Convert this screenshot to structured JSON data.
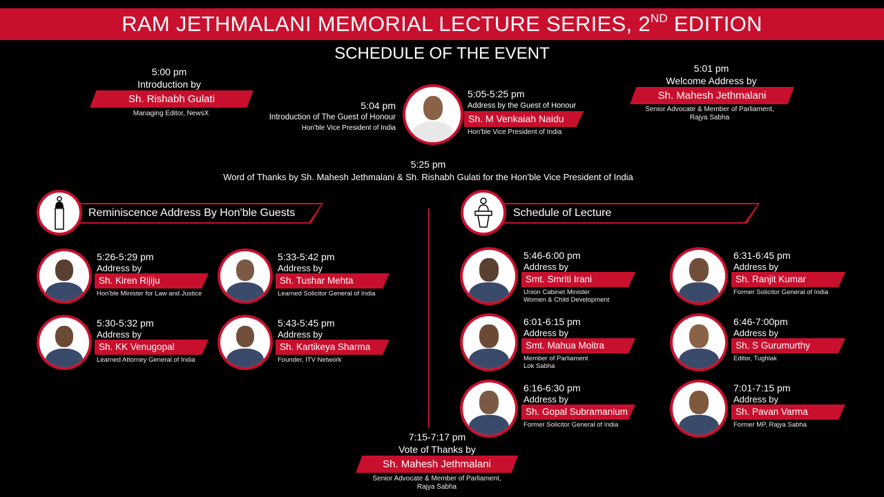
{
  "header": {
    "title": "RAM JETHMALANI MEMORIAL LECTURE SERIES, 2",
    "title_sup": "ND",
    "title_end": " EDITION",
    "subtitle": "SCHEDULE OF THE EVENT"
  },
  "colors": {
    "accent": "#c8102e",
    "background": "#000000"
  },
  "intro": {
    "time": "5:00 pm",
    "label": "Introduction by",
    "name": "Sh. Rishabh Gulati",
    "role": "Managing Editor, NewsX"
  },
  "guest_intro": {
    "time": "5:04 pm",
    "label": "Introduction of The Guest of Honour",
    "role": "Hon'ble Vice President of India"
  },
  "guest_address": {
    "time": "5:05-5:25 pm",
    "label": "Address by the Guest of Honour",
    "name": "Sh. M Venkaiah Naidu",
    "role": "Hon'ble Vice President of India"
  },
  "welcome": {
    "time": "5:01 pm",
    "label": "Welcome Address by",
    "name": "Sh. Mahesh Jethmalani",
    "role1": "Senior Advocate & Member of Parliament,",
    "role2": "Rajya Sabha"
  },
  "thanks": {
    "time": "5:25 pm",
    "label": "Word of Thanks by Sh. Mahesh Jethmalani & Sh. Rishabh Gulati for the Hon'ble Vice President of India"
  },
  "sections": {
    "reminiscence": {
      "title": "Reminiscence Address By Hon'ble Guests",
      "icon": "microphone-icon"
    },
    "lecture": {
      "title": "Schedule of Lecture",
      "icon": "podium-speaker-icon"
    }
  },
  "reminiscence": [
    {
      "time": "5:26-5:29 pm",
      "label": "Address by",
      "name": "Sh. Kiren Rijiju",
      "role": "Hon'ble Minister for Law and Justice"
    },
    {
      "time": "5:30-5:32 pm",
      "label": "Address by",
      "name": "Sh. KK Venugopal",
      "role": "Learned Attorney General of India"
    },
    {
      "time": "5:33-5:42 pm",
      "label": "Address by",
      "name": "Sh. Tushar Mehta",
      "role": "Learned Solicitor General of India"
    },
    {
      "time": "5:43-5:45 pm",
      "label": "Address by",
      "name": "Sh. Kartikeya Sharma",
      "role": "Founder, ITV Network"
    }
  ],
  "lecture": [
    {
      "time": "5:46-6:00 pm",
      "label": "Address by",
      "name": "Smt. Smriti Irani",
      "role": "Union Cabinet Minister\nWomen & Child Development"
    },
    {
      "time": "6:01-6:15 pm",
      "label": "Address by",
      "name": "Smt. Mahua Moitra",
      "role": "Member of Parliament\nLok Sabha"
    },
    {
      "time": "6:16-6:30 pm",
      "label": "Address by",
      "name": "Sh. Gopal Subramanium",
      "role": "Former Solicitor General of India"
    },
    {
      "time": "6:31-6:45 pm",
      "label": "Address by",
      "name": "Sh. Ranjit Kumar",
      "role": "Former Solicitor General of India"
    },
    {
      "time": "6:46-7:00pm",
      "label": "Address by",
      "name": "Sh. S Gurumurthy",
      "role": "Editor, Tughlak"
    },
    {
      "time": "7:01-7:15 pm",
      "label": "Address by",
      "name": "Sh. Pavan Varma",
      "role": "Former MP, Rajya Sabha"
    }
  ],
  "vote": {
    "time": "7:15-7:17 pm",
    "label": "Vote of Thanks by",
    "name": "Sh. Mahesh Jethmalani",
    "role1": "Senior Advocate & Member of Parliament,",
    "role2": "Rajya Sabha"
  }
}
